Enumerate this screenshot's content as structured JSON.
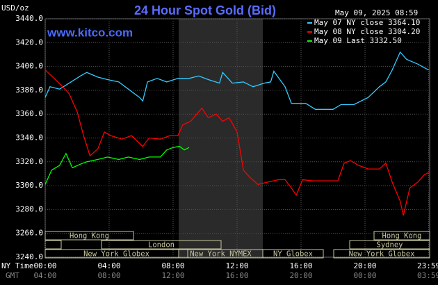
{
  "chart_data": {
    "type": "line",
    "title": "24 Hour Spot Gold (Bid)",
    "unit_label": "USD/oz",
    "timestamp": "May 09, 2025 08:59",
    "watermark": "www.kitco.com",
    "x_row_labels": [
      "NY Time",
      "GMT"
    ],
    "xlim": [
      0,
      24
    ],
    "ylim": [
      3240,
      3440
    ],
    "yticks": [
      {
        "value": 3440,
        "label": "3440.0"
      },
      {
        "value": 3420,
        "label": "3420.0"
      },
      {
        "value": 3400,
        "label": "3400.0"
      },
      {
        "value": 3380,
        "label": "3380.0"
      },
      {
        "value": 3360,
        "label": "3360.0"
      },
      {
        "value": 3340,
        "label": "3340.0"
      },
      {
        "value": 3320,
        "label": "3320.0"
      },
      {
        "value": 3300,
        "label": "3300.0"
      },
      {
        "value": 3280,
        "label": "3280.0"
      },
      {
        "value": 3260,
        "label": "3260.0"
      },
      {
        "value": 3240,
        "label": "3240.0"
      }
    ],
    "xticks": [
      {
        "value": 0,
        "label": "00:00"
      },
      {
        "value": 4,
        "label": "04:00"
      },
      {
        "value": 8,
        "label": "08:00"
      },
      {
        "value": 12,
        "label": "12:00"
      },
      {
        "value": 16,
        "label": "16:00"
      },
      {
        "value": 20,
        "label": "20:00"
      },
      {
        "value": 23.98,
        "label": "23:59"
      }
    ],
    "gmt_labels": [
      "04:00",
      "08:00",
      "12:00",
      "16:00",
      "20:00",
      "00:00",
      "03:59"
    ],
    "grid": true,
    "sessions": [
      "Hong Kong",
      "London",
      "New York Globex",
      "New York NYMEX",
      "NY Globex",
      "Hong Kong",
      "Sydney",
      "New York Globex"
    ],
    "series": [
      {
        "name": "May 07 NY close 3364.10",
        "color": "#33ccff",
        "x": [
          0,
          0.3,
          0.9,
          1.5,
          2.2,
          2.6,
          3.3,
          3.9,
          4.6,
          5.2,
          5.9,
          6.1,
          6.4,
          7,
          7.6,
          8.3,
          9,
          9.6,
          10.2,
          10.9,
          11.1,
          11.7,
          12.4,
          13,
          13.7,
          14.1,
          14.3,
          15,
          15.4,
          16.3,
          16.9,
          18,
          18.5,
          19.3,
          20.2,
          20.9,
          21.3,
          21.7,
          22.2,
          22.6,
          23.3,
          23.7,
          23.98
        ],
        "values": [
          3374,
          3383,
          3381,
          3386,
          3392,
          3395,
          3391,
          3389,
          3387,
          3381,
          3374,
          3371,
          3387,
          3390,
          3387,
          3390,
          3390,
          3392,
          3389,
          3386,
          3395,
          3386,
          3387,
          3383,
          3386,
          3387,
          3396,
          3383,
          3369,
          3369,
          3364,
          3364,
          3368,
          3368,
          3374,
          3383,
          3387,
          3397,
          3412,
          3406,
          3402,
          3399,
          3397
        ]
      },
      {
        "name": "May 08 NY close 3304.20",
        "color": "#ff0000",
        "x": [
          0,
          0.4,
          1.1,
          1.5,
          2,
          2.4,
          2.8,
          3.3,
          3.7,
          4.1,
          4.8,
          5.4,
          6.1,
          6.5,
          7.2,
          7.8,
          8.3,
          8.6,
          9.1,
          9.6,
          9.8,
          10.2,
          10.7,
          11.1,
          11.5,
          12,
          12.4,
          12.8,
          13.3,
          13.9,
          14.6,
          15,
          15.4,
          15.7,
          16.1,
          16.7,
          17.6,
          18.3,
          18.7,
          19.1,
          19.6,
          20.2,
          20.9,
          21.3,
          21.7,
          22.2,
          22.4,
          22.8,
          23.3,
          23.7,
          23.98
        ],
        "values": [
          3397,
          3392,
          3383,
          3377,
          3362,
          3342,
          3325,
          3331,
          3345,
          3342,
          3339,
          3342,
          3333,
          3340,
          3339,
          3342,
          3342,
          3351,
          3354,
          3362,
          3365,
          3357,
          3360,
          3354,
          3357,
          3345,
          3313,
          3307,
          3301,
          3303,
          3305,
          3305,
          3298,
          3292,
          3305,
          3304,
          3304,
          3304,
          3319,
          3321,
          3317,
          3314,
          3314,
          3319,
          3303,
          3287,
          3275,
          3298,
          3303,
          3309,
          3311
        ]
      },
      {
        "name": "May 09 Last 3332.50",
        "color": "#00ff00",
        "x": [
          0,
          0.4,
          0.9,
          1.3,
          1.7,
          2.2,
          2.6,
          3.3,
          3.9,
          4.6,
          5.2,
          5.9,
          6.5,
          7.2,
          7.6,
          8,
          8.4,
          8.7,
          9.0
        ],
        "values": [
          3301,
          3313,
          3317,
          3327,
          3315,
          3318,
          3320,
          3322,
          3324,
          3322,
          3324,
          3322,
          3324,
          3324,
          3330,
          3332,
          3333,
          3330,
          3332
        ]
      }
    ]
  }
}
